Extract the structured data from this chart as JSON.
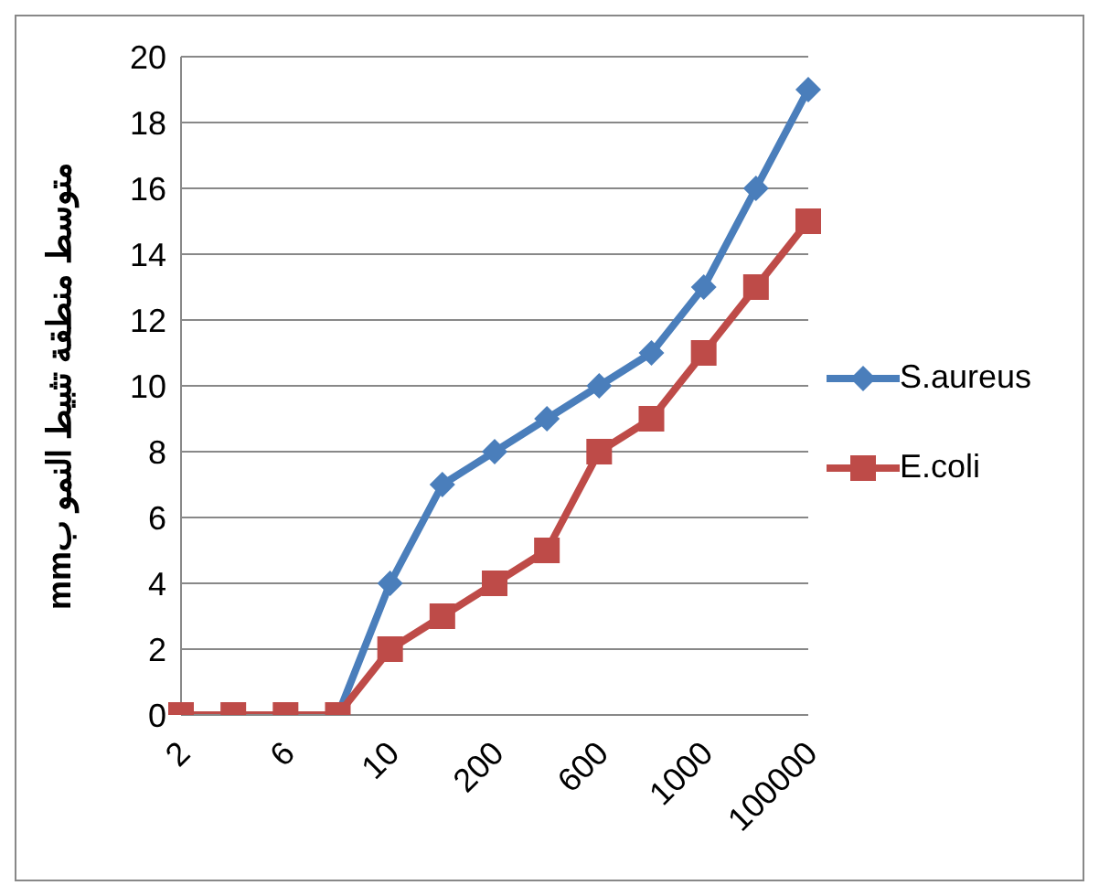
{
  "chart_data": {
    "type": "line",
    "ylabel": "متوسط منطقة تثبيط النمو بmm",
    "categories": [
      "2",
      null,
      "6",
      null,
      "10",
      null,
      "200",
      null,
      "600",
      null,
      "1000",
      null,
      "100000"
    ],
    "series": [
      {
        "name": "S.aureus",
        "color": "#4a7ebb",
        "marker": "diamond",
        "values": [
          null,
          null,
          null,
          0,
          4,
          7,
          8,
          9,
          10,
          11,
          13,
          16,
          19
        ]
      },
      {
        "name": "E.coli",
        "color": "#be4b48",
        "marker": "square",
        "values": [
          0,
          0,
          0,
          0,
          2,
          3,
          4,
          5,
          8,
          9,
          11,
          13,
          15
        ]
      }
    ],
    "ylim": [
      0,
      20
    ],
    "yticks": [
      0,
      2,
      4,
      6,
      8,
      10,
      12,
      14,
      16,
      18,
      20
    ],
    "grid": "y",
    "legend": "right"
  }
}
